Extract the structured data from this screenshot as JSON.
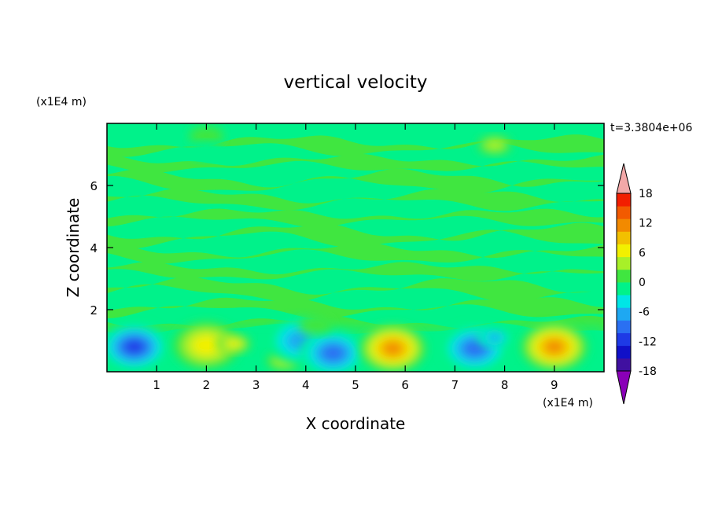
{
  "chart_data": {
    "type": "heatmap",
    "title": "vertical velocity",
    "xlabel": "X coordinate",
    "ylabel": "Z coordinate",
    "x_unit": "(x1E4 m)",
    "y_unit": "(x1E4 m)",
    "time_label": "t=3.3804e+06",
    "xlim": [
      0,
      10
    ],
    "ylim": [
      0,
      8
    ],
    "x_ticks": [
      1,
      2,
      3,
      4,
      5,
      6,
      7,
      8,
      9
    ],
    "y_ticks": [
      2,
      4,
      6
    ],
    "colorbar": {
      "ticks": [
        18,
        12,
        6,
        0,
        -6,
        -12,
        -18
      ],
      "levels": [
        -21,
        -18,
        -15,
        -12,
        -9,
        -6,
        -3,
        0,
        3,
        6,
        9,
        12,
        15,
        18,
        21
      ],
      "colors": [
        "#8a00b8",
        "#4010a0",
        "#1010c8",
        "#1e3ae6",
        "#2a70f2",
        "#1ea8f2",
        "#00e6e6",
        "#00f28a",
        "#40e640",
        "#a8f028",
        "#f2f000",
        "#f2c000",
        "#f28a00",
        "#f25a00",
        "#f21e00",
        "#f2a8a8"
      ]
    },
    "features": [
      {
        "x": 0.55,
        "z": 0.8,
        "value": -16
      },
      {
        "x": 2.0,
        "z": 0.85,
        "value": 9
      },
      {
        "x": 2.55,
        "z": 0.9,
        "value": 8
      },
      {
        "x": 3.55,
        "z": 0.35,
        "value": 6
      },
      {
        "x": 3.9,
        "z": 1.0,
        "value": -9
      },
      {
        "x": 4.55,
        "z": 0.6,
        "value": -12
      },
      {
        "x": 5.75,
        "z": 0.75,
        "value": 15
      },
      {
        "x": 7.4,
        "z": 0.75,
        "value": -12
      },
      {
        "x": 7.8,
        "z": 1.1,
        "value": -8
      },
      {
        "x": 9.0,
        "z": 0.8,
        "value": 15
      },
      {
        "x": 4.2,
        "z": 1.5,
        "value": 3
      },
      {
        "x": 2.0,
        "z": 7.6,
        "value": 3
      },
      {
        "x": 7.8,
        "z": 7.3,
        "value": 5
      },
      {
        "x": 2.0,
        "z": 7.1,
        "value": -3
      }
    ]
  }
}
